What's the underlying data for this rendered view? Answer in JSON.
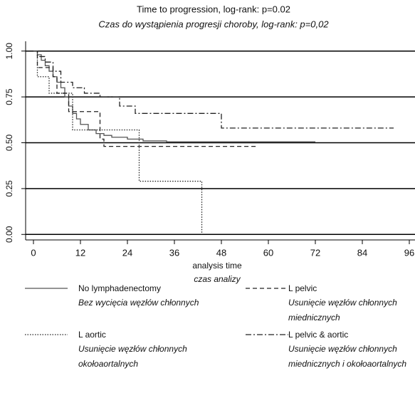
{
  "chart_data": {
    "type": "step",
    "title": "Time to progression, log-rank: p=0.02",
    "subtitle": "Czas do wystąpienia progresji choroby, log-rank: p=0,02",
    "x_label": "analysis time",
    "x_label_sub": "czas analizy",
    "xlim": [
      -2,
      96
    ],
    "xticks": [
      0,
      12,
      24,
      36,
      48,
      60,
      72,
      84,
      96
    ],
    "ylim": [
      -0.03,
      1.03
    ],
    "yticks": [
      {
        "value": 0,
        "label": "0.00"
      },
      {
        "value": 0.25,
        "label": "0.25"
      },
      {
        "value": 0.5,
        "label": "0.50"
      },
      {
        "value": 0.75,
        "label": "0.75"
      },
      {
        "value": 1,
        "label": "1.00"
      }
    ],
    "grid": true,
    "series": [
      {
        "name": "No lymphadenectomy",
        "description": "Bez wycięcia węzłów chłonnych",
        "color": "#555555",
        "dash": "solid",
        "x": [
          0,
          1,
          2,
          3,
          4,
          5,
          6,
          7,
          8,
          9,
          10,
          11,
          12,
          14,
          16,
          18,
          20,
          24,
          28,
          34,
          72
        ],
        "values": [
          1,
          0.98,
          0.95,
          0.92,
          0.89,
          0.86,
          0.83,
          0.8,
          0.75,
          0.7,
          0.66,
          0.63,
          0.6,
          0.57,
          0.55,
          0.54,
          0.53,
          0.52,
          0.51,
          0.505,
          0.505
        ]
      },
      {
        "name": "L pelvic",
        "description": "Usunięcie węzłów chłonnych miednicznych",
        "color": "#222222",
        "dash": "dashed",
        "x": [
          0,
          1,
          5,
          6,
          9,
          17,
          18,
          57
        ],
        "values": [
          1,
          0.91,
          0.86,
          0.77,
          0.67,
          0.52,
          0.48,
          0.48
        ]
      },
      {
        "name": "L aortic",
        "description": "Usunięcie węzłów chłonnych okołoaortalnych",
        "color": "#222222",
        "dash": "dotted",
        "x": [
          0,
          1,
          4,
          10,
          27,
          43
        ],
        "values": [
          1,
          0.86,
          0.77,
          0.57,
          0.29,
          0
        ]
      },
      {
        "name": "L pelvic & aortic",
        "description": "Usunięcie węzłów chłonnych miednicznych i okołoaortalnych",
        "color": "#222222",
        "dash": "dashdot",
        "x": [
          0,
          1,
          3,
          5,
          7,
          10,
          13,
          17,
          22,
          26,
          48,
          92
        ],
        "values": [
          1,
          0.97,
          0.94,
          0.89,
          0.83,
          0.8,
          0.77,
          0.75,
          0.7,
          0.66,
          0.58,
          0.58
        ]
      }
    ]
  }
}
